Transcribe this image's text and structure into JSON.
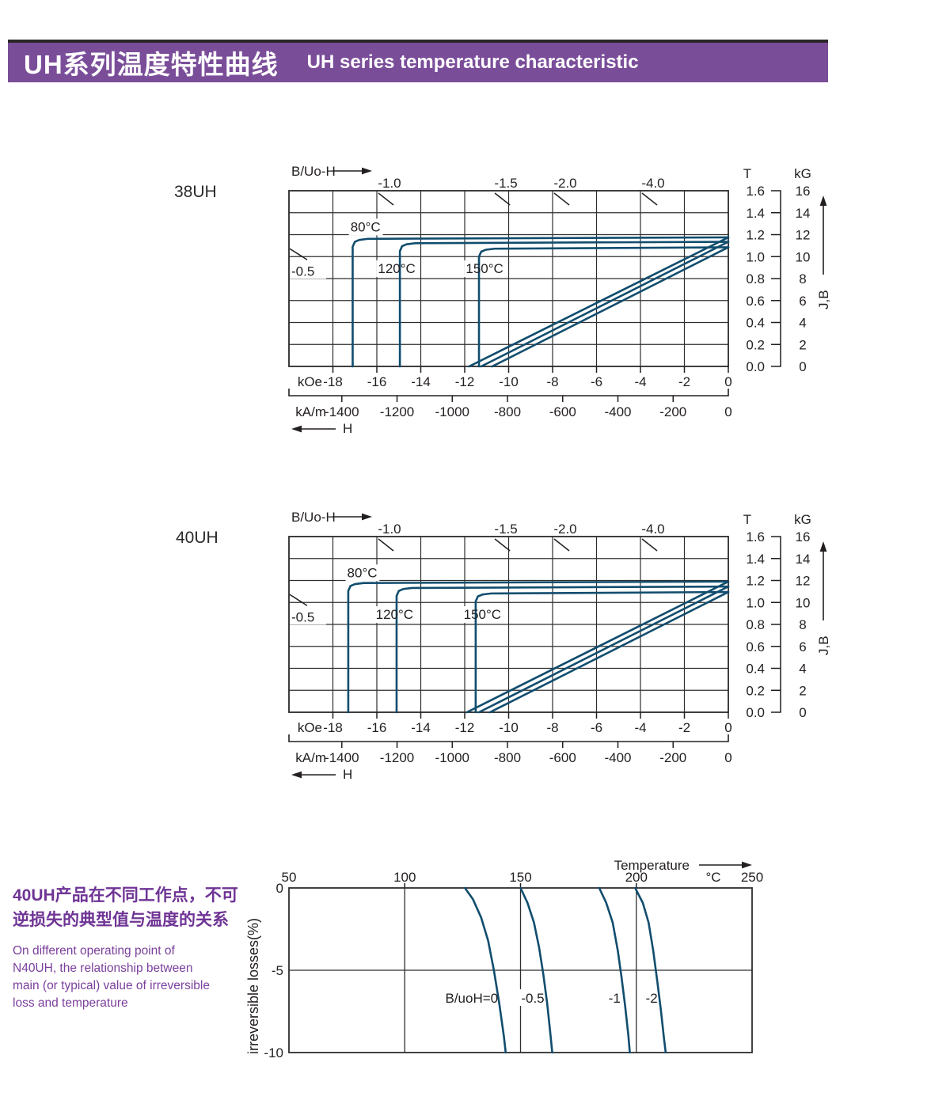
{
  "header": {
    "title_zh": "UH系列温度特性曲线",
    "title_en": "UH series temperature characteristic",
    "bar_color": "#7a4d99",
    "top_border_color": "#2b2628"
  },
  "side_note": {
    "zh_lines": [
      "40UH产品在不同工作点，不可",
      "逆损失的典型值与温度的关系"
    ],
    "en_lines": [
      "On different operating point of",
      "N40UH,  the relationship between",
      "main (or typical) value of irreversible",
      "loss and temperature"
    ]
  },
  "colors": {
    "curve": "#114d6e",
    "grid": "#2e2e2e",
    "text": "#231f20",
    "purple_text": "#6f3495"
  },
  "chart_data": [
    {
      "id": "bh-38uh",
      "type": "line",
      "title": "38UH",
      "permeance_label": "B/Uo-H",
      "permeance_top": [
        {
          "label": "-1.0",
          "koe": -16
        },
        {
          "label": "-1.5",
          "koe": -10.7
        },
        {
          "label": "-2.0",
          "koe": -8
        },
        {
          "label": "-4.0",
          "koe": -4
        }
      ],
      "permeance_left": {
        "label": "-0.5",
        "t": 1.0
      },
      "x_range_koe": [
        -20,
        0
      ],
      "y_range_t": [
        0,
        1.6
      ],
      "x_primary": {
        "unit": "kOe",
        "ticks": [
          "-18",
          "-16",
          "-14",
          "-12",
          "-10",
          "-8",
          "-6",
          "-4",
          "-2",
          "0"
        ]
      },
      "x_secondary": {
        "unit": "kA/m",
        "ticks": [
          "-1400",
          "-1200",
          "-1000",
          "-800",
          "-600",
          "-400",
          "-200",
          "0"
        ]
      },
      "y_t": {
        "unit": "T",
        "ticks": [
          "1.6",
          "1.4",
          "1.2",
          "1.0",
          "0.8",
          "0.6",
          "0.4",
          "0.2",
          "0.0"
        ]
      },
      "y_kg": {
        "unit": "kG",
        "ticks": [
          "16",
          "14",
          "12",
          "10",
          "8",
          "6",
          "4",
          "2",
          "0"
        ]
      },
      "jb_label": "J,B",
      "h_label": "H",
      "series": [
        {
          "label": "80°C",
          "label_koe": -17.2,
          "label_t": 1.23,
          "j": [
            [
              -17.1,
              0
            ],
            [
              -17.1,
              1.09
            ],
            [
              -17.0,
              1.135
            ],
            [
              -16.8,
              1.152
            ],
            [
              -16.4,
              1.162
            ],
            [
              0,
              1.175
            ]
          ],
          "b": [
            [
              -11.8,
              0
            ],
            [
              0,
              1.175
            ]
          ]
        },
        {
          "label": "120°C",
          "label_koe": -15.95,
          "label_t": 0.85,
          "j": [
            [
              -14.95,
              0
            ],
            [
              -14.95,
              1.05
            ],
            [
              -14.85,
              1.095
            ],
            [
              -14.65,
              1.112
            ],
            [
              -14.25,
              1.122
            ],
            [
              0,
              1.135
            ]
          ],
          "b": [
            [
              -11.25,
              0
            ],
            [
              0,
              1.135
            ]
          ]
        },
        {
          "label": "150°C",
          "label_koe": -11.95,
          "label_t": 0.85,
          "j": [
            [
              -11.35,
              0
            ],
            [
              -11.35,
              1.0
            ],
            [
              -11.25,
              1.045
            ],
            [
              -11.05,
              1.062
            ],
            [
              -10.65,
              1.072
            ],
            [
              0,
              1.085
            ]
          ],
          "b": [
            [
              -10.75,
              0
            ],
            [
              0,
              1.085
            ]
          ]
        }
      ]
    },
    {
      "id": "bh-40uh",
      "type": "line",
      "title": "40UH",
      "permeance_label": "B/Uo-H",
      "permeance_top": [
        {
          "label": "-1.0",
          "koe": -16
        },
        {
          "label": "-1.5",
          "koe": -10.7
        },
        {
          "label": "-2.0",
          "koe": -8
        },
        {
          "label": "-4.0",
          "koe": -4
        }
      ],
      "permeance_left": {
        "label": "-0.5",
        "t": 1.0
      },
      "x_range_koe": [
        -20,
        0
      ],
      "y_range_t": [
        0,
        1.6
      ],
      "x_primary": {
        "unit": "kOe",
        "ticks": [
          "-18",
          "-16",
          "-14",
          "-12",
          "-10",
          "-8",
          "-6",
          "-4",
          "-2",
          "0"
        ]
      },
      "x_secondary": {
        "unit": "kA/m",
        "ticks": [
          "-1400",
          "-1200",
          "-1000",
          "-800",
          "-600",
          "-400",
          "-200",
          "0"
        ]
      },
      "y_t": {
        "unit": "T",
        "ticks": [
          "1.6",
          "1.4",
          "1.2",
          "1.0",
          "0.8",
          "0.6",
          "0.4",
          "0.2",
          "0.0"
        ]
      },
      "y_kg": {
        "unit": "kG",
        "ticks": [
          "16",
          "14",
          "12",
          "10",
          "8",
          "6",
          "4",
          "2",
          "0"
        ]
      },
      "jb_label": "J,B",
      "h_label": "H",
      "series": [
        {
          "label": "80°C",
          "label_koe": -17.35,
          "label_t": 1.23,
          "j": [
            [
              -17.3,
              0
            ],
            [
              -17.3,
              1.105
            ],
            [
              -17.2,
              1.15
            ],
            [
              -17.0,
              1.167
            ],
            [
              -16.6,
              1.177
            ],
            [
              0,
              1.19
            ]
          ],
          "b": [
            [
              -11.9,
              0
            ],
            [
              0,
              1.19
            ]
          ]
        },
        {
          "label": "120°C",
          "label_koe": -16.05,
          "label_t": 0.85,
          "j": [
            [
              -15.1,
              0
            ],
            [
              -15.1,
              1.06
            ],
            [
              -15.0,
              1.105
            ],
            [
              -14.8,
              1.122
            ],
            [
              -14.4,
              1.132
            ],
            [
              0,
              1.145
            ]
          ],
          "b": [
            [
              -11.35,
              0
            ],
            [
              0,
              1.145
            ]
          ]
        },
        {
          "label": "150°C",
          "label_koe": -12.05,
          "label_t": 0.85,
          "j": [
            [
              -11.5,
              0
            ],
            [
              -11.5,
              1.01
            ],
            [
              -11.4,
              1.055
            ],
            [
              -11.2,
              1.072
            ],
            [
              -10.8,
              1.082
            ],
            [
              0,
              1.095
            ]
          ],
          "b": [
            [
              -10.85,
              0
            ],
            [
              0,
              1.095
            ]
          ]
        }
      ]
    },
    {
      "id": "loss-40uh",
      "type": "line",
      "x_label": "Temperature",
      "x_unit": "°C",
      "x_ticks": [
        "50",
        "100",
        "150",
        "200",
        "250"
      ],
      "x_range": [
        50,
        250
      ],
      "x_gridlines": [
        100,
        150,
        200
      ],
      "y_label": "irreversible  losses(%)",
      "y_ticks": [
        "0",
        "-5",
        "-10"
      ],
      "y_range": [
        0,
        -10
      ],
      "series": [
        {
          "label": "B/uoH=0",
          "label_end_t": 140.3,
          "points": [
            [
              126,
              0
            ],
            [
              129.5,
              -0.7
            ],
            [
              133,
              -1.8
            ],
            [
              136,
              -3.2
            ],
            [
              138.5,
              -5
            ],
            [
              140.8,
              -7
            ],
            [
              142.8,
              -9
            ],
            [
              143.6,
              -10
            ]
          ]
        },
        {
          "label": "-0.5",
          "label_end_t": 160.3,
          "points": [
            [
              150,
              0
            ],
            [
              153,
              -0.9
            ],
            [
              155.8,
              -2.1
            ],
            [
              158,
              -3.6
            ],
            [
              159.8,
              -5.2
            ],
            [
              161.5,
              -7
            ],
            [
              163,
              -9
            ],
            [
              163.7,
              -10
            ]
          ]
        },
        {
          "label": "-1",
          "label_end_t": 193.2,
          "points": [
            [
              184,
              0
            ],
            [
              187,
              -0.9
            ],
            [
              189.8,
              -2.1
            ],
            [
              192,
              -3.8
            ],
            [
              193.6,
              -5.4
            ],
            [
              195.2,
              -7.2
            ],
            [
              196.6,
              -9
            ],
            [
              197.2,
              -10
            ]
          ]
        },
        {
          "label": "-2",
          "label_end_t": 209.2,
          "points": [
            [
              199.5,
              0
            ],
            [
              202.8,
              -0.9
            ],
            [
              205.3,
              -2.1
            ],
            [
              207.3,
              -3.8
            ],
            [
              209,
              -5.6
            ],
            [
              210.6,
              -7.4
            ],
            [
              212,
              -9.2
            ],
            [
              212.7,
              -10
            ]
          ]
        }
      ]
    }
  ]
}
